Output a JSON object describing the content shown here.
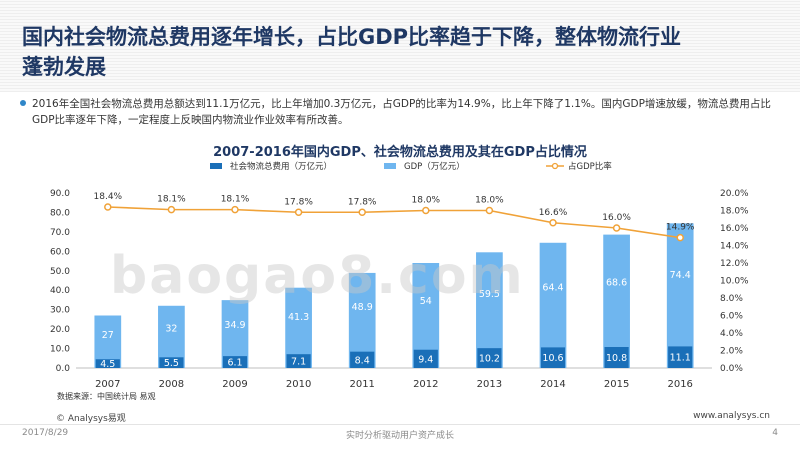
{
  "page": {
    "headline": "国内社会物流总费用逐年增长，占比GDP比率趋于下降，整体物流行业蓬勃发展",
    "summary": "2016年全国社会物流总费用总额达到11.1万亿元，比上年增加0.3万亿元，占GDP的比率为14.9%，比上年下降了1.1%。国内GDP增速放缓，物流总费用占比GDP比率逐年下降，一定程度上反映国内物流业作业效率有所改善。",
    "brand": "© Analysys易观",
    "site": "www.analysys.cn",
    "date": "2017/8/29",
    "slogan": "实时分析驱动用户资产成长",
    "page_number": "4",
    "watermark": "baogao8.com"
  },
  "chart_data": {
    "type": "bar",
    "title": "2007-2016年国内GDP、社会物流总费用及其在GDP占比情况",
    "source": "数据来源：中国统计局 易观",
    "categories": [
      "2007",
      "2008",
      "2009",
      "2010",
      "2011",
      "2012",
      "2013",
      "2014",
      "2015",
      "2016"
    ],
    "series": [
      {
        "name": "社会物流总费用（万亿元）",
        "kind": "bar",
        "axis": "left",
        "color": "#1a6fb8",
        "values": [
          4.5,
          5.5,
          6.1,
          7.1,
          8.4,
          9.4,
          10.2,
          10.6,
          10.8,
          11.1
        ]
      },
      {
        "name": "GDP（万亿元）",
        "kind": "bar",
        "axis": "left",
        "color": "#6fb6ef",
        "values": [
          27.0,
          32.0,
          34.9,
          41.3,
          48.9,
          54.0,
          59.5,
          64.4,
          68.6,
          74.4
        ]
      },
      {
        "name": "占GDP比率",
        "kind": "line",
        "axis": "right",
        "color": "#f0a238",
        "values": [
          18.4,
          18.1,
          18.1,
          17.8,
          17.8,
          18.0,
          18.0,
          16.6,
          16.0,
          14.9
        ]
      }
    ],
    "ylim": [
      0,
      90
    ],
    "yticks": [
      "0.0",
      "10.0",
      "20.0",
      "30.0",
      "40.0",
      "50.0",
      "60.0",
      "70.0",
      "80.0",
      "90.0"
    ],
    "y2lim": [
      0,
      20
    ],
    "y2ticks": [
      "0.0%",
      "2.0%",
      "4.0%",
      "6.0%",
      "8.0%",
      "10.0%",
      "12.0%",
      "14.0%",
      "16.0%",
      "18.0%",
      "20.0%"
    ],
    "legend_position": "top",
    "grid": false
  }
}
